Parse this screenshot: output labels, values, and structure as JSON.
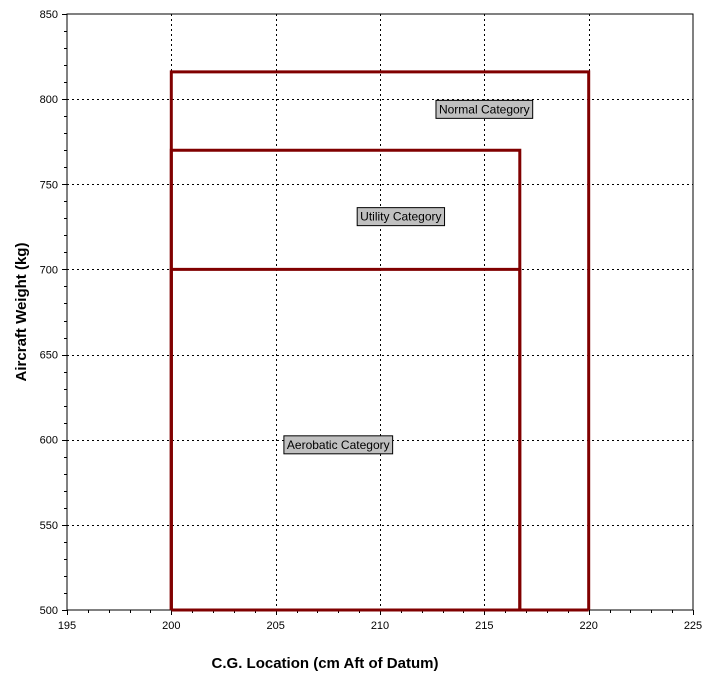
{
  "chart_data": {
    "type": "line",
    "title": "",
    "xlabel": "C.G. Location (cm Aft of Datum)",
    "ylabel": "Aircraft Weight (kg)",
    "xlim": [
      195,
      225
    ],
    "ylim": [
      500,
      850
    ],
    "x_ticks": [
      195,
      200,
      205,
      210,
      215,
      220,
      225
    ],
    "y_ticks": [
      500,
      550,
      600,
      650,
      700,
      750,
      800,
      850
    ],
    "grid": true,
    "series": [
      {
        "name": "Normal Category",
        "color": "#800000",
        "x": [
          200,
          200,
          220,
          220
        ],
        "y": [
          500,
          816,
          816,
          500
        ]
      },
      {
        "name": "Utility Category",
        "color": "#800000",
        "x": [
          200,
          200,
          216.7,
          216.7
        ],
        "y": [
          500,
          770,
          770,
          500
        ]
      },
      {
        "name": "Aerobatic Category",
        "color": "#800000",
        "x": [
          200,
          200,
          216.7,
          216.7
        ],
        "y": [
          500,
          700,
          700,
          500
        ]
      }
    ],
    "annotations": [
      {
        "text": "Normal Category",
        "x": 215,
        "y": 794
      },
      {
        "text": "Utility Category",
        "x": 211,
        "y": 731
      },
      {
        "text": "Aerobatic Category",
        "x": 208,
        "y": 597
      }
    ],
    "baseline": {
      "color": "#800000",
      "x": [
        200,
        220
      ],
      "y": [
        500,
        500
      ]
    }
  }
}
